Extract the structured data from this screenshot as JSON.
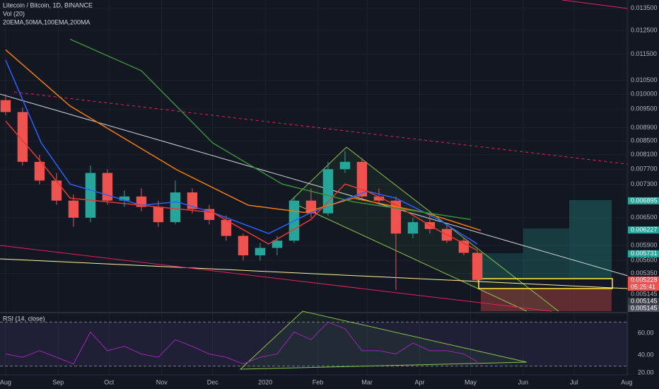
{
  "header": {
    "symbol": "Litecoin / Bitcoin, 1D, BINANCE",
    "volume": "Vol (20)",
    "indicators": "20EMA,50MA,100EMA,200MA"
  },
  "chart_data": [
    {
      "type": "candlestick",
      "x": [
        0,
        10,
        20,
        30,
        40,
        50,
        60,
        70,
        80,
        90,
        100,
        110,
        120,
        130,
        140,
        150,
        160,
        170,
        180,
        190,
        200,
        210,
        220,
        230,
        240,
        250,
        260,
        270,
        278
      ],
      "open": [
        0.0098,
        0.0094,
        0.0079,
        0.0074,
        0.0069,
        0.0065,
        0.0076,
        0.0069,
        0.007,
        0.00675,
        0.0064,
        0.0071,
        0.0067,
        0.00645,
        0.0061,
        0.0057,
        0.00585,
        0.006,
        0.0069,
        0.0066,
        0.0077,
        0.0079,
        0.007,
        0.0069,
        0.00615,
        0.0064,
        0.00625,
        0.006,
        0.00575
      ],
      "high": [
        0.01,
        0.00955,
        0.0081,
        0.0076,
        0.00705,
        0.0078,
        0.0077,
        0.00715,
        0.0072,
        0.0069,
        0.0074,
        0.0072,
        0.0068,
        0.00655,
        0.00615,
        0.00595,
        0.0061,
        0.007,
        0.0072,
        0.0079,
        0.0082,
        0.008,
        0.0072,
        0.007,
        0.0065,
        0.00655,
        0.00635,
        0.00605,
        0.0058
      ],
      "low": [
        0.0093,
        0.0078,
        0.0073,
        0.0068,
        0.0063,
        0.0064,
        0.0068,
        0.00675,
        0.00665,
        0.0063,
        0.00635,
        0.0066,
        0.00635,
        0.006,
        0.0056,
        0.0056,
        0.0057,
        0.00595,
        0.0065,
        0.00655,
        0.0076,
        0.0069,
        0.0068,
        0.00505,
        0.00605,
        0.00615,
        0.00595,
        0.0057,
        0.00518
      ],
      "close": [
        0.0094,
        0.0079,
        0.0074,
        0.0069,
        0.0065,
        0.0076,
        0.0069,
        0.007,
        0.00675,
        0.0064,
        0.0071,
        0.0067,
        0.00645,
        0.0061,
        0.0057,
        0.00585,
        0.006,
        0.0069,
        0.0066,
        0.0077,
        0.0079,
        0.007,
        0.0069,
        0.00615,
        0.0064,
        0.00625,
        0.006,
        0.00575,
        0.00523
      ],
      "up_color": "#26a69a",
      "down_color": "#ef5350",
      "series": [
        {
          "color": "#2962ff",
          "x": [
            0,
            21,
            38,
            80,
            101,
            122,
            155,
            180,
            213,
            230,
            255,
            278
          ],
          "values": [
            0.01127,
            0.00844,
            0.00731,
            0.00679,
            0.00687,
            0.00662,
            0.00615,
            0.00662,
            0.00713,
            0.00696,
            0.00646,
            0.00593
          ]
        },
        {
          "color": "#e53935",
          "x": [
            0,
            21,
            38,
            80,
            122,
            155,
            180,
            200,
            213,
            230,
            255,
            278
          ],
          "values": [
            0.00911,
            0.00789,
            0.00696,
            0.00679,
            0.00662,
            0.00593,
            0.00646,
            0.00731,
            0.00713,
            0.00679,
            0.00622,
            0.0058
          ]
        },
        {
          "color": "#f57c00",
          "x": [
            0,
            38,
            101,
            143,
            176,
            205,
            247,
            280
          ],
          "values": [
            0.01168,
            0.0096,
            0.00768,
            0.00679,
            0.00662,
            0.00696,
            0.00662,
            0.00622
          ]
        },
        {
          "color": "#388e3c",
          "x": [
            38,
            80,
            122,
            163,
            205,
            247,
            274
          ],
          "values": [
            0.01212,
            0.01086,
            0.00844,
            0.00731,
            0.00687,
            0.00662,
            0.00646
          ]
        }
      ],
      "log_scale": true,
      "grid": true,
      "ylim": [
        0.00469,
        0.0139
      ],
      "yticks": [
        {
          "value": 0.0135,
          "label": "0.013500"
        },
        {
          "value": 0.0125,
          "label": "0.012500"
        },
        {
          "value": 0.0115,
          "label": "0.011500"
        },
        {
          "value": 0.0105,
          "label": "0.010500"
        },
        {
          "value": 0.01,
          "label": "0.010000"
        },
        {
          "value": 0.0095,
          "label": "0.009500"
        },
        {
          "value": 0.0089,
          "label": "0.008900"
        },
        {
          "value": 0.0085,
          "label": "0.008500"
        },
        {
          "value": 0.0081,
          "label": "0.008100"
        },
        {
          "value": 0.0077,
          "label": "0.007700"
        },
        {
          "value": 0.0073,
          "label": "0.007300"
        },
        {
          "value": 0.0065,
          "label": "0.006500"
        },
        {
          "value": 0.0059,
          "label": "0.005900"
        },
        {
          "value": 0.0056,
          "label": "0.005600"
        },
        {
          "value": 0.00535,
          "label": "0.005350"
        }
      ],
      "price_tags": [
        {
          "value": 0.006895,
          "label": "0.006895",
          "color": "#26a69a"
        },
        {
          "value": 0.006227,
          "label": "0.006227",
          "color": "#26a69a"
        },
        {
          "value": 0.005731,
          "label": "0.005731",
          "color": "#26a69a"
        },
        {
          "value": 0.005228,
          "label": "0.005228",
          "color": "#ef5350"
        },
        {
          "label": "05:25:41",
          "color": "#ef5350"
        },
        {
          "value": 0.005145,
          "label": "0.005145",
          "color": "none"
        },
        {
          "value": 0.005145,
          "label": "0.005145",
          "color": "#363a45"
        },
        {
          "value": 0.005145,
          "label": "0.005145",
          "color": "#50535e"
        }
      ],
      "xlim": [
        -3.3,
        366.7
      ],
      "xticks": [
        {
          "value": 0,
          "label": "Aug"
        },
        {
          "value": 31,
          "label": "Sep"
        },
        {
          "value": 61,
          "label": "Oct"
        },
        {
          "value": 92,
          "label": "Nov"
        },
        {
          "value": 122,
          "label": "Dec"
        },
        {
          "value": 153,
          "label": "2020"
        },
        {
          "value": 184,
          "label": "Feb"
        },
        {
          "value": 213,
          "label": "Mar"
        },
        {
          "value": 244,
          "label": "Apr"
        },
        {
          "value": 274,
          "label": "May"
        },
        {
          "value": 305,
          "label": "Jun"
        },
        {
          "value": 335,
          "label": "Jul"
        },
        {
          "value": 366,
          "label": "Aug"
        }
      ]
    },
    {
      "type": "line",
      "title": "RSI (14, close)",
      "color": "#9c27b0",
      "x": [
        0,
        10,
        20,
        30,
        40,
        50,
        60,
        70,
        80,
        90,
        100,
        110,
        120,
        130,
        140,
        150,
        160,
        170,
        180,
        190,
        200,
        210,
        220,
        230,
        240,
        250,
        260,
        270,
        278
      ],
      "values": [
        41,
        38,
        44,
        38,
        32,
        61,
        44,
        48,
        41,
        38,
        54,
        48,
        41,
        38,
        32,
        38,
        41,
        61,
        54,
        70,
        64,
        44,
        44,
        41,
        51,
        44,
        44,
        41,
        34
      ],
      "ylim": [
        22,
        78
      ],
      "yticks": [
        {
          "value": 60,
          "label": "60.00"
        },
        {
          "value": 40,
          "label": "40.00"
        },
        {
          "value": 20,
          "label": "20.00"
        }
      ],
      "levels": [
        70,
        30
      ]
    }
  ]
}
